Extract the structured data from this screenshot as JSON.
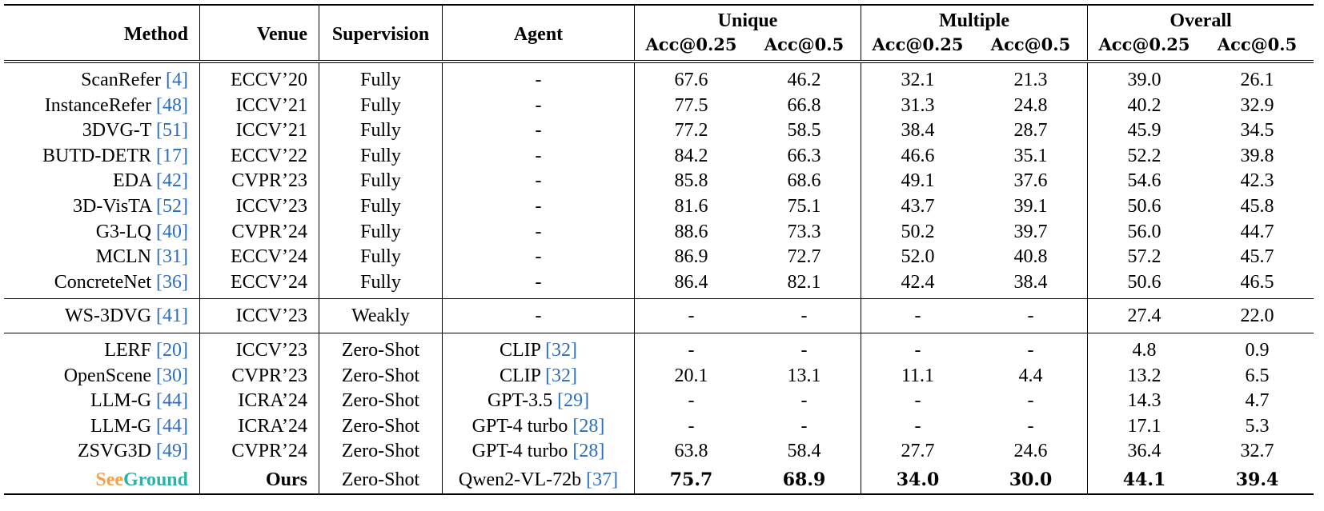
{
  "header": {
    "method": "Method",
    "venue": "Venue",
    "supervision": "Supervision",
    "agent": "Agent",
    "groups": [
      "Unique",
      "Multiple",
      "Overall"
    ],
    "metrics": [
      "Acc@0.25",
      "Acc@0.5",
      "Acc@0.25",
      "Acc@0.5",
      "Acc@0.25",
      "Acc@0.5"
    ]
  },
  "rows": [
    {
      "method": "ScanRefer",
      "ref": "[4]",
      "venue": "ECCV’20",
      "supervision": "Fully",
      "agent": "-",
      "agent_ref": "",
      "values": [
        "67.6",
        "46.2",
        "32.1",
        "21.3",
        "39.0",
        "26.1"
      ]
    },
    {
      "method": "InstanceRefer",
      "ref": "[48]",
      "venue": "ICCV’21",
      "supervision": "Fully",
      "agent": "-",
      "agent_ref": "",
      "values": [
        "77.5",
        "66.8",
        "31.3",
        "24.8",
        "40.2",
        "32.9"
      ]
    },
    {
      "method": "3DVG-T",
      "ref": "[51]",
      "venue": "ICCV’21",
      "supervision": "Fully",
      "agent": "-",
      "agent_ref": "",
      "values": [
        "77.2",
        "58.5",
        "38.4",
        "28.7",
        "45.9",
        "34.5"
      ]
    },
    {
      "method": "BUTD-DETR",
      "ref": "[17]",
      "venue": "ECCV’22",
      "supervision": "Fully",
      "agent": "-",
      "agent_ref": "",
      "values": [
        "84.2",
        "66.3",
        "46.6",
        "35.1",
        "52.2",
        "39.8"
      ]
    },
    {
      "method": "EDA",
      "ref": "[42]",
      "venue": "CVPR’23",
      "supervision": "Fully",
      "agent": "-",
      "agent_ref": "",
      "values": [
        "85.8",
        "68.6",
        "49.1",
        "37.6",
        "54.6",
        "42.3"
      ]
    },
    {
      "method": "3D-VisTA",
      "ref": "[52]",
      "venue": "ICCV’23",
      "supervision": "Fully",
      "agent": "-",
      "agent_ref": "",
      "values": [
        "81.6",
        "75.1",
        "43.7",
        "39.1",
        "50.6",
        "45.8"
      ]
    },
    {
      "method": "G3-LQ",
      "ref": "[40]",
      "venue": "CVPR’24",
      "supervision": "Fully",
      "agent": "-",
      "agent_ref": "",
      "values": [
        "88.6",
        "73.3",
        "50.2",
        "39.7",
        "56.0",
        "44.7"
      ]
    },
    {
      "method": "MCLN",
      "ref": "[31]",
      "venue": "ECCV’24",
      "supervision": "Fully",
      "agent": "-",
      "agent_ref": "",
      "values": [
        "86.9",
        "72.7",
        "52.0",
        "40.8",
        "57.2",
        "45.7"
      ]
    },
    {
      "method": "ConcreteNet",
      "ref": "[36]",
      "venue": "ECCV’24",
      "supervision": "Fully",
      "agent": "-",
      "agent_ref": "",
      "values": [
        "86.4",
        "82.1",
        "42.4",
        "38.4",
        "50.6",
        "46.5"
      ]
    },
    {
      "method": "WS-3DVG",
      "ref": "[41]",
      "venue": "ICCV’23",
      "supervision": "Weakly",
      "agent": "-",
      "agent_ref": "",
      "values": [
        "-",
        "-",
        "-",
        "-",
        "27.4",
        "22.0"
      ]
    },
    {
      "method": "LERF",
      "ref": "[20]",
      "venue": "ICCV’23",
      "supervision": "Zero-Shot",
      "agent": "CLIP",
      "agent_ref": "[32]",
      "values": [
        "-",
        "-",
        "-",
        "-",
        "4.8",
        "0.9"
      ]
    },
    {
      "method": "OpenScene",
      "ref": "[30]",
      "venue": "CVPR’23",
      "supervision": "Zero-Shot",
      "agent": "CLIP",
      "agent_ref": "[32]",
      "values": [
        "20.1",
        "13.1",
        "11.1",
        "4.4",
        "13.2",
        "6.5"
      ]
    },
    {
      "method": "LLM-G",
      "ref": "[44]",
      "venue": "ICRA’24",
      "supervision": "Zero-Shot",
      "agent": "GPT-3.5",
      "agent_ref": "[29]",
      "values": [
        "-",
        "-",
        "-",
        "-",
        "14.3",
        "4.7"
      ]
    },
    {
      "method": "LLM-G",
      "ref": "[44]",
      "venue": "ICRA’24",
      "supervision": "Zero-Shot",
      "agent": "GPT-4 turbo",
      "agent_ref": "[28]",
      "values": [
        "-",
        "-",
        "-",
        "-",
        "17.1",
        "5.3"
      ]
    },
    {
      "method": "ZSVG3D",
      "ref": "[49]",
      "venue": "CVPR’24",
      "supervision": "Zero-Shot",
      "agent": "GPT-4 turbo",
      "agent_ref": "[28]",
      "values": [
        "63.8",
        "58.4",
        "27.7",
        "24.6",
        "36.4",
        "32.7"
      ]
    }
  ],
  "ours": {
    "method_part1": "See",
    "method_part2": "Ground",
    "venue": "Ours",
    "supervision": "Zero-Shot",
    "agent": "Qwen2-VL-72b",
    "agent_ref": "[37]",
    "values": [
      "75.7",
      "68.9",
      "34.0",
      "30.0",
      "44.1",
      "39.4"
    ]
  },
  "colors": {
    "reference": "#2a6ebd",
    "see": "#f5a04b",
    "ground": "#2bb3a8"
  }
}
